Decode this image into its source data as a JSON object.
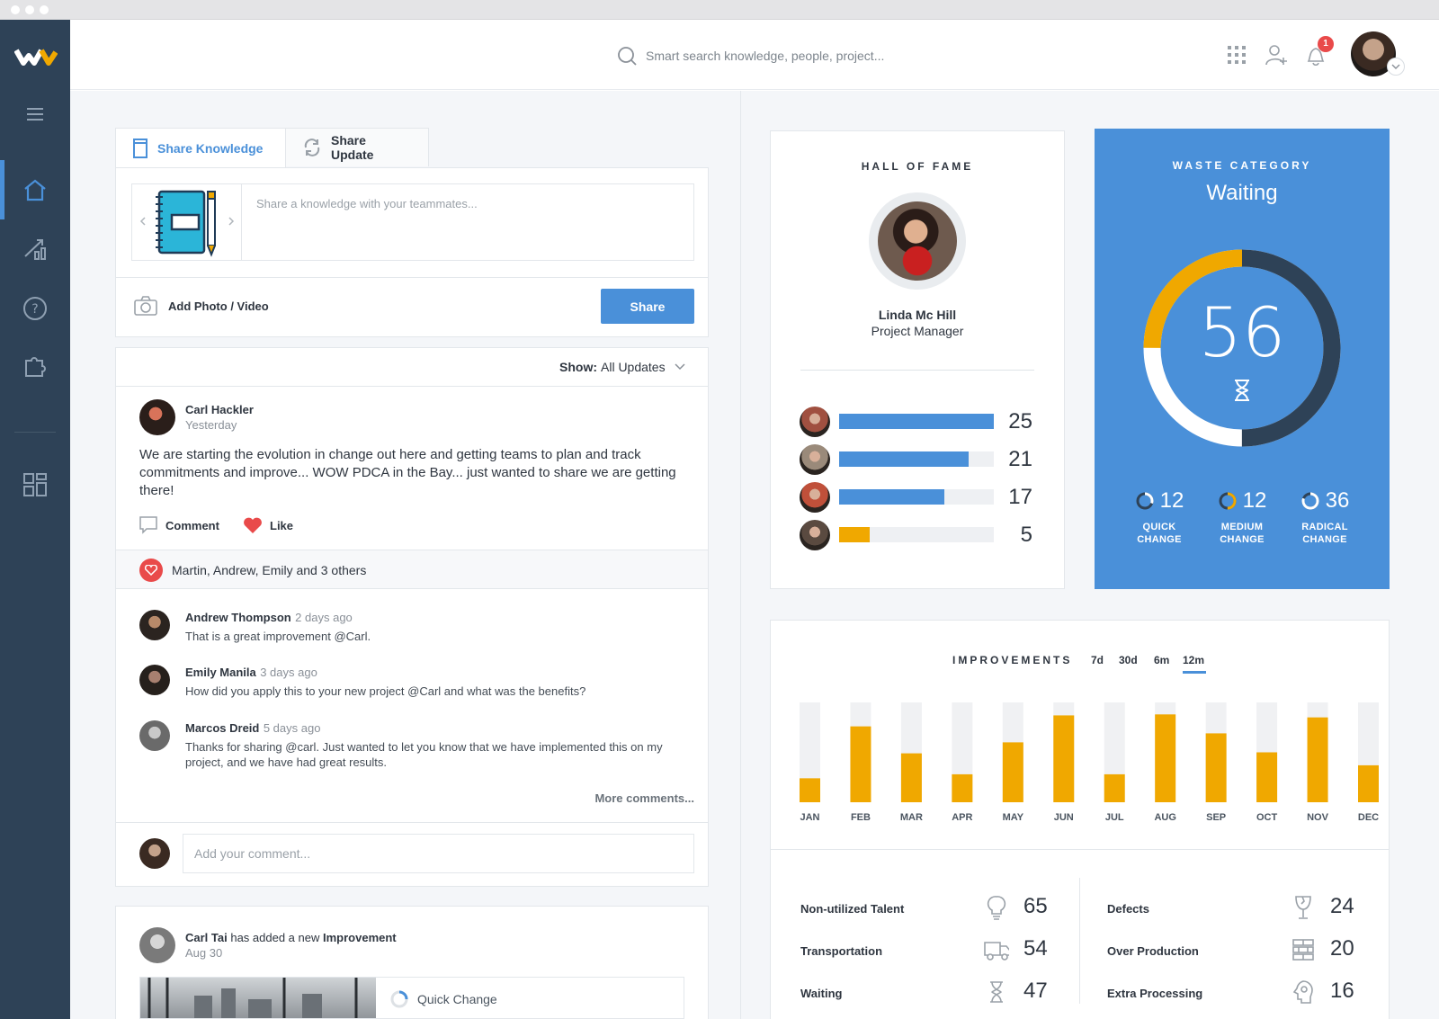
{
  "search": {
    "placeholder": "Smart search knowledge, people, project..."
  },
  "notifications": {
    "count": "1"
  },
  "composer": {
    "tabs": [
      {
        "label": "Share Knowledge"
      },
      {
        "label": "Share Update"
      }
    ],
    "placeholder": "Share a knowledge with your teammates...",
    "add_media": "Add Photo / Video",
    "share_label": "Share"
  },
  "feed_filter": {
    "prefix": "Show:",
    "value": "All Updates"
  },
  "post": {
    "author": "Carl Hackler",
    "time": "Yesterday",
    "body": "We are starting the evolution in change out here and getting teams to plan and track commitments and improve... WOW PDCA in the Bay... just wanted to share we are getting there!",
    "comment_label": "Comment",
    "like_label": "Like",
    "likes_summary": "Martin, Andrew, Emily and 3 others",
    "comments": [
      {
        "name": "Andrew Thompson",
        "time": "2 days ago",
        "text": "That is a great improvement @Carl."
      },
      {
        "name": "Emily Manila",
        "time": "3 days ago",
        "text": "How did you apply this to your new project @Carl and what was the benefits?"
      },
      {
        "name": "Marcos Dreid",
        "time": "5 days ago",
        "text": "Thanks for sharing @carl. Just wanted to let you know that we have implemented this on my project, and we have had great results."
      }
    ],
    "more_comments": "More comments...",
    "add_comment_placeholder": "Add your comment..."
  },
  "post2": {
    "author": "Carl Tai",
    "action": "has added a new",
    "object": "Improvement",
    "time": "Aug 30",
    "tag": "Quick Change"
  },
  "hall_of_fame": {
    "title": "HALL OF FAME",
    "name": "Linda Mc Hill",
    "role": "Project Manager",
    "rows": [
      {
        "value": 25,
        "max": 25,
        "color": "#4a90d9"
      },
      {
        "value": 21,
        "max": 25,
        "color": "#4a90d9"
      },
      {
        "value": 17,
        "max": 25,
        "color": "#4a90d9"
      },
      {
        "value": 5,
        "max": 25,
        "color": "#f0a800"
      }
    ]
  },
  "waste_category": {
    "title": "WASTE CATEGORY",
    "name": "Waiting",
    "value": "56",
    "donut_fraction_orange": 0.25,
    "donut_fraction_dark": 0.5,
    "stats": [
      {
        "value": "12",
        "label1": "QUICK",
        "label2": "CHANGE"
      },
      {
        "value": "12",
        "label1": "MEDIUM",
        "label2": "CHANGE"
      },
      {
        "value": "36",
        "label1": "RADICAL",
        "label2": "CHANGE"
      }
    ]
  },
  "improvements": {
    "title": "IMPROVEMENTS",
    "periods": [
      "7d",
      "30d",
      "6m",
      "12m"
    ],
    "active_period": "12m"
  },
  "chart_data": {
    "type": "bar",
    "categories": [
      "JAN",
      "FEB",
      "MAR",
      "APR",
      "MAY",
      "JUN",
      "JUL",
      "AUG",
      "SEP",
      "OCT",
      "NOV",
      "DEC"
    ],
    "values": [
      24,
      76,
      49,
      28,
      60,
      87,
      28,
      88,
      69,
      50,
      85,
      37
    ],
    "ylim": [
      0,
      100
    ],
    "color": "#f0a800",
    "track_color": "#f0f1f3"
  },
  "waste_types": [
    {
      "label": "Non-utilized Talent",
      "value": "65",
      "icon": "lightbulb-icon"
    },
    {
      "label": "Transportation",
      "value": "54",
      "icon": "truck-icon"
    },
    {
      "label": "Waiting",
      "value": "47",
      "icon": "hourglass-icon"
    },
    {
      "label": "Defects",
      "value": "24",
      "icon": "broken-glass-icon"
    },
    {
      "label": "Over Production",
      "value": "20",
      "icon": "stack-icon"
    },
    {
      "label": "Extra Processing",
      "value": "16",
      "icon": "gear-head-icon"
    }
  ],
  "colors": {
    "sidebar": "#2e4257",
    "accent": "#4a90d9",
    "orange": "#f0a800",
    "dark": "#2e4257"
  }
}
